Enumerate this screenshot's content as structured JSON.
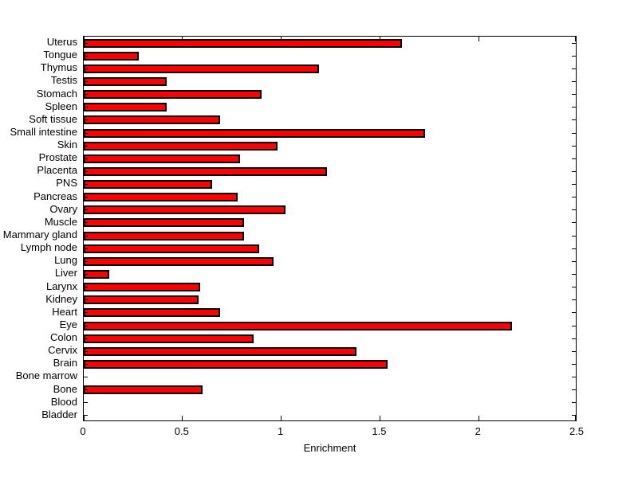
{
  "chart_data": {
    "type": "bar",
    "orientation": "horizontal",
    "title": "",
    "xlabel": "Enrichment",
    "ylabel": "",
    "xlim": [
      0,
      2.5
    ],
    "x_ticks": [
      0,
      0.5,
      1,
      1.5,
      2,
      2.5
    ],
    "x_tick_labels": [
      "0",
      "0.5",
      "1",
      "1.5",
      "2",
      "2.5"
    ],
    "grid": false,
    "box": true,
    "tick_direction": "in",
    "bar_color": "#ff0000",
    "bar_edge_color": "#000000",
    "background_color": "#ffffff",
    "categories_top_to_bottom": [
      "Uterus",
      "Tongue",
      "Thymus",
      "Testis",
      "Stomach",
      "Spleen",
      "Soft tissue",
      "Small intestine",
      "Skin",
      "Prostate",
      "Placenta",
      "PNS",
      "Pancreas",
      "Ovary",
      "Muscle",
      "Mammary gland",
      "Lymph node",
      "Lung",
      "Liver",
      "Larynx",
      "Kidney",
      "Heart",
      "Eye",
      "Colon",
      "Cervix",
      "Brain",
      "Bone marrow",
      "Bone",
      "Blood",
      "Bladder"
    ],
    "values": [
      1.61,
      0.28,
      1.19,
      0.42,
      0.9,
      0.42,
      0.69,
      1.73,
      0.98,
      0.79,
      1.23,
      0.65,
      0.78,
      1.02,
      0.81,
      0.81,
      0.89,
      0.96,
      0.13,
      0.59,
      0.58,
      0.69,
      2.17,
      0.86,
      1.38,
      1.54,
      0.0,
      0.6,
      0.0,
      0.0
    ]
  }
}
